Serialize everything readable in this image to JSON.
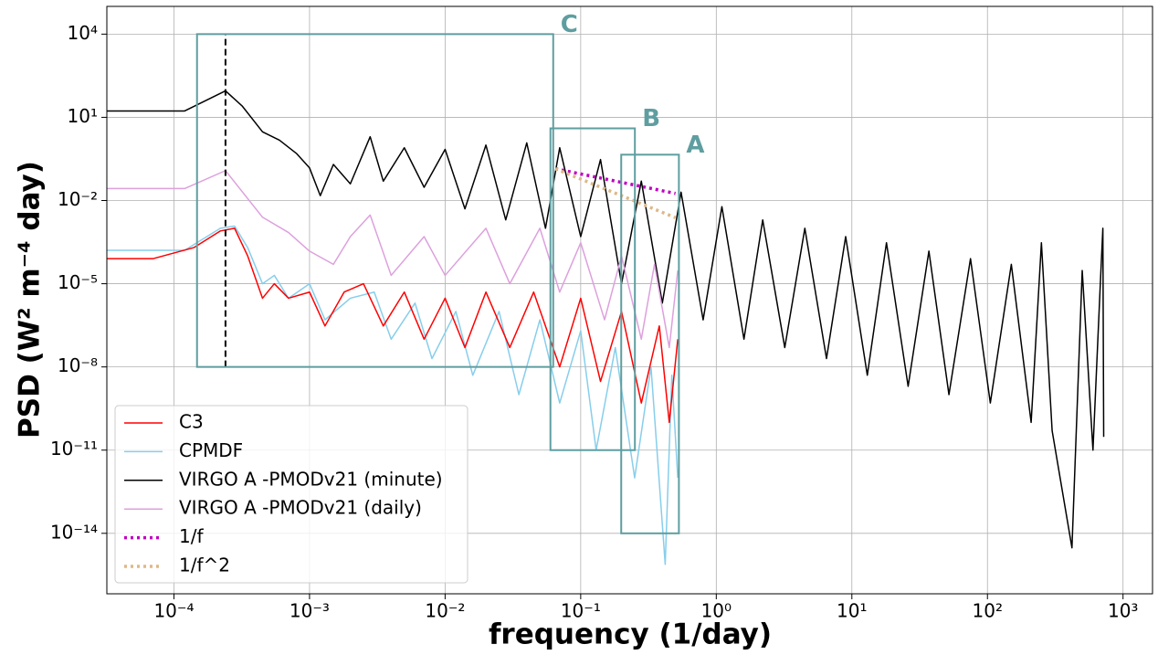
{
  "chart_data": {
    "type": "line",
    "log_x": true,
    "log_y": true,
    "grid": true,
    "legend_position": "lower left",
    "xlabel": "frequency (1/day)",
    "ylabel": "PSD (W² m⁻⁴ day)",
    "xlim": [
      3.2e-05,
      1650
    ],
    "ylim": [
      6.6e-17,
      100000
    ],
    "xticks": [
      {
        "value": 0.0001,
        "label": "10⁻⁴"
      },
      {
        "value": 0.001,
        "label": "10⁻³"
      },
      {
        "value": 0.01,
        "label": "10⁻²"
      },
      {
        "value": 0.1,
        "label": "10⁻¹"
      },
      {
        "value": 1,
        "label": "10⁰"
      },
      {
        "value": 10,
        "label": "10¹"
      },
      {
        "value": 100,
        "label": "10²"
      },
      {
        "value": 1000,
        "label": "10³"
      }
    ],
    "yticks": [
      {
        "value": 1e-14,
        "label": "10⁻¹⁴"
      },
      {
        "value": 1e-11,
        "label": "10⁻¹¹"
      },
      {
        "value": 1e-08,
        "label": "10⁻⁸"
      },
      {
        "value": 1e-05,
        "label": "10⁻⁵"
      },
      {
        "value": 0.01,
        "label": "10⁻²"
      },
      {
        "value": 10,
        "label": "10¹"
      },
      {
        "value": 10000,
        "label": "10⁴"
      }
    ],
    "series": [
      {
        "name": "C3",
        "color": "#ff0000",
        "linestyle": "solid",
        "x": [
          3.2e-05,
          7e-05,
          0.00014,
          0.00022,
          0.00028,
          0.00035,
          0.00045,
          0.00055,
          0.0007,
          0.001,
          0.0013,
          0.0018,
          0.0025,
          0.0035,
          0.005,
          0.007,
          0.01,
          0.014,
          0.02,
          0.03,
          0.045,
          0.07,
          0.1,
          0.14,
          0.2,
          0.28,
          0.38,
          0.45,
          0.52
        ],
        "values": [
          8e-05,
          8e-05,
          0.0002,
          0.0008,
          0.001,
          0.0001,
          3e-06,
          1e-05,
          3e-06,
          5e-06,
          3e-07,
          5e-06,
          1e-05,
          3e-07,
          5e-06,
          1e-07,
          3e-06,
          5e-08,
          5e-06,
          5e-08,
          5e-06,
          1e-08,
          3e-06,
          3e-09,
          1e-06,
          5e-10,
          3e-07,
          1e-10,
          1e-07
        ]
      },
      {
        "name": "CPMDF",
        "color": "#87ceeb",
        "linestyle": "solid",
        "x": [
          3.2e-05,
          0.00012,
          0.00022,
          0.00028,
          0.00035,
          0.00045,
          0.00055,
          0.0007,
          0.001,
          0.0013,
          0.002,
          0.003,
          0.004,
          0.006,
          0.008,
          0.012,
          0.016,
          0.025,
          0.035,
          0.05,
          0.07,
          0.1,
          0.13,
          0.18,
          0.25,
          0.33,
          0.42,
          0.47,
          0.52
        ],
        "values": [
          0.00016,
          0.00016,
          0.001,
          0.0012,
          0.0002,
          1e-05,
          2e-05,
          3e-06,
          1e-05,
          5e-07,
          3e-06,
          5e-06,
          1e-07,
          2e-06,
          2e-08,
          1e-06,
          5e-09,
          1e-06,
          1e-09,
          5e-07,
          5e-10,
          2e-07,
          1e-11,
          5e-08,
          1e-12,
          1e-08,
          7.6e-16,
          5e-09,
          1e-12
        ]
      },
      {
        "name": "VIRGO A -PMODv21 (minute)",
        "color": "#000000",
        "linestyle": "solid",
        "x": [
          3.2e-05,
          0.00012,
          0.00024,
          0.00032,
          0.00045,
          0.0006,
          0.0008,
          0.001,
          0.0012,
          0.0015,
          0.002,
          0.0028,
          0.0035,
          0.005,
          0.007,
          0.01,
          0.014,
          0.02,
          0.028,
          0.04,
          0.055,
          0.07,
          0.1,
          0.14,
          0.2,
          0.28,
          0.4,
          0.55,
          0.8,
          1.1,
          1.6,
          2.2,
          3.2,
          4.5,
          6.5,
          9,
          13,
          18,
          26,
          37,
          52,
          75,
          105,
          150,
          210,
          250,
          300,
          420,
          500,
          600,
          680,
          710,
          720
        ],
        "values": [
          17,
          17,
          90,
          25,
          3,
          1.5,
          0.5,
          0.15,
          0.015,
          0.2,
          0.04,
          2,
          0.05,
          0.8,
          0.03,
          0.7,
          0.005,
          1,
          0.002,
          1.2,
          0.001,
          0.8,
          0.0005,
          0.3,
          1e-05,
          0.05,
          2e-06,
          0.02,
          5e-07,
          0.006,
          1e-07,
          0.002,
          5e-08,
          0.001,
          2e-08,
          0.0005,
          5e-09,
          0.0003,
          2e-09,
          0.00015,
          1e-09,
          8e-05,
          5e-10,
          5e-05,
          1e-10,
          0.0003,
          5e-11,
          3e-15,
          3e-05,
          1e-11,
          1e-05,
          0.001,
          3e-11
        ]
      },
      {
        "name": "VIRGO A -PMODv21 (daily)",
        "color": "#dda0dd",
        "linestyle": "solid",
        "x": [
          3.2e-05,
          0.00012,
          0.00024,
          0.00045,
          0.0007,
          0.001,
          0.0015,
          0.002,
          0.0028,
          0.004,
          0.007,
          0.01,
          0.02,
          0.03,
          0.05,
          0.07,
          0.1,
          0.15,
          0.2,
          0.28,
          0.35,
          0.45,
          0.52
        ],
        "values": [
          0.027,
          0.027,
          0.12,
          0.0025,
          0.0007,
          0.00015,
          5e-05,
          0.0005,
          0.003,
          2e-05,
          0.0005,
          2e-05,
          0.001,
          1e-05,
          0.001,
          5e-06,
          0.0003,
          5e-07,
          0.0001,
          1e-07,
          5e-05,
          5e-08,
          3e-05
        ]
      },
      {
        "name": "1/f",
        "color": "#c000c0",
        "linestyle": "dotted",
        "x": [
          0.065,
          0.5
        ],
        "values": [
          0.14,
          0.018
        ]
      },
      {
        "name": "1/f^2",
        "color": "#deb887",
        "linestyle": "dotted",
        "x": [
          0.065,
          0.5
        ],
        "values": [
          0.14,
          0.0024
        ]
      }
    ],
    "vline": {
      "x": 0.00024,
      "y0": 1e-08,
      "y1": 10000,
      "color": "#000000"
    },
    "regions": [
      {
        "label": "C",
        "x0": 0.000148,
        "x1": 0.0627,
        "y0": 1e-08,
        "y1": 10000
      },
      {
        "label": "B",
        "x0": 0.0598,
        "x1": 0.251,
        "y0": 1e-11,
        "y1": 4
      },
      {
        "label": "A",
        "x0": 0.199,
        "x1": 0.53,
        "y0": 1e-14,
        "y1": 0.45
      }
    ],
    "region_color": "#5f9ea0"
  }
}
